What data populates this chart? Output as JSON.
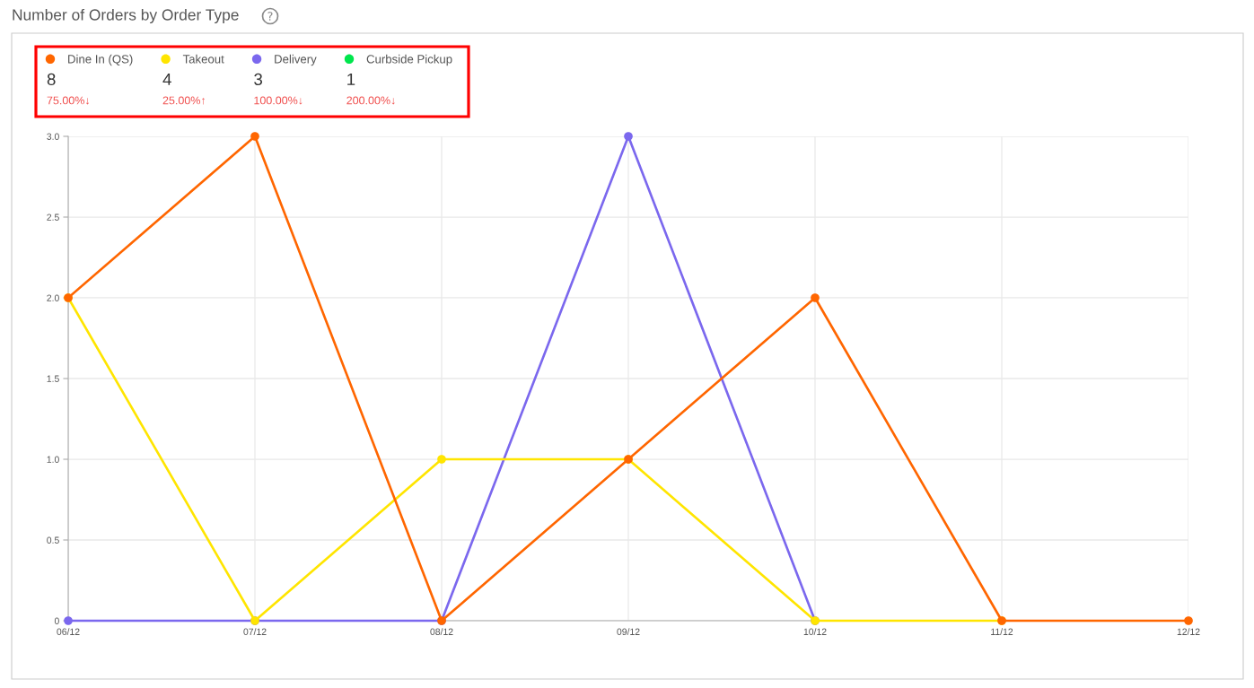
{
  "chart_data": {
    "type": "line",
    "title": "Number of Orders by Order Type",
    "categories": [
      "06/12",
      "07/12",
      "08/12",
      "09/12",
      "10/12",
      "11/12",
      "12/12"
    ],
    "series": [
      {
        "name": "Dine In (QS)",
        "color": "#ff6600",
        "values": [
          2,
          3,
          0,
          1,
          2,
          0,
          0
        ]
      },
      {
        "name": "Takeout",
        "color": "#ffe500",
        "values": [
          2,
          0,
          1,
          1,
          0,
          0,
          null
        ]
      },
      {
        "name": "Delivery",
        "color": "#7b68ee",
        "values": [
          0,
          0,
          0,
          3,
          0,
          null,
          null
        ]
      },
      {
        "name": "Curbside Pickup",
        "color": "#00e64d",
        "values": [
          null,
          null,
          null,
          null,
          null,
          null,
          null
        ]
      }
    ],
    "ylim": [
      0,
      3
    ],
    "yticks": [
      0,
      0.5,
      {
        "value": 1,
        "label": "1.0"
      },
      1.5,
      {
        "value": 2,
        "label": "2.0"
      },
      2.5,
      {
        "value": 3,
        "label": "3.0"
      }
    ],
    "grid": true,
    "legend": "top left",
    "marker": "circle",
    "line_style": "solid",
    "annotations": [
      "8",
      "75.00%↓",
      "4",
      "25.00%↑",
      "3",
      "100.00%↓",
      "1",
      "200.00%↓"
    ]
  }
}
